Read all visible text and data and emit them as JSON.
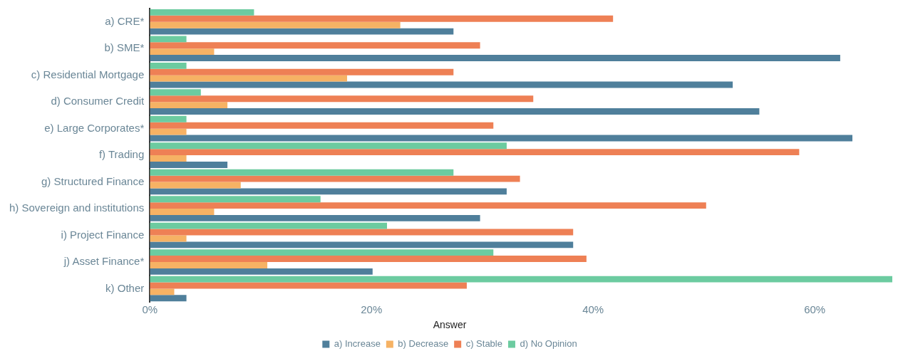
{
  "chart_data": {
    "type": "bar",
    "orientation": "horizontal",
    "legend_title": "Answer",
    "legend": "bottom",
    "grid": false,
    "categories": [
      "a) CRE*",
      "b) SME*",
      "c) Residential Mortgage",
      "d) Consumer Credit",
      "e) Large Corporates*",
      "f) Trading",
      "g) Structured Finance",
      "h) Sovereign and institutions",
      "i) Project Finance",
      "j) Asset Finance*",
      "k) Other"
    ],
    "xlim": [
      0,
      67
    ],
    "xticks": [
      {
        "value": 0,
        "label": "0%"
      },
      {
        "value": 20,
        "label": "20%"
      },
      {
        "value": 40,
        "label": "40%"
      },
      {
        "value": 60,
        "label": "60%"
      }
    ],
    "series": [
      {
        "name": "a) Increase",
        "color": "#4f7f9b",
        "values": [
          27.4,
          62.3,
          52.6,
          55.0,
          63.4,
          7.0,
          32.2,
          29.8,
          38.2,
          20.1,
          3.3
        ]
      },
      {
        "name": "b) Decrease",
        "color": "#f6b264",
        "values": [
          22.6,
          5.8,
          17.8,
          7.0,
          3.3,
          3.3,
          8.2,
          5.8,
          3.3,
          10.6,
          2.2
        ]
      },
      {
        "name": "c) Stable",
        "color": "#ee8055",
        "values": [
          41.8,
          29.8,
          27.4,
          34.6,
          31.0,
          58.6,
          33.4,
          50.2,
          38.2,
          39.4,
          28.6
        ]
      },
      {
        "name": "d) No Opinion",
        "color": "#6ccba0",
        "values": [
          9.4,
          3.3,
          3.3,
          4.6,
          3.3,
          32.2,
          27.4,
          15.4,
          21.4,
          31.0,
          67.0
        ]
      }
    ]
  }
}
